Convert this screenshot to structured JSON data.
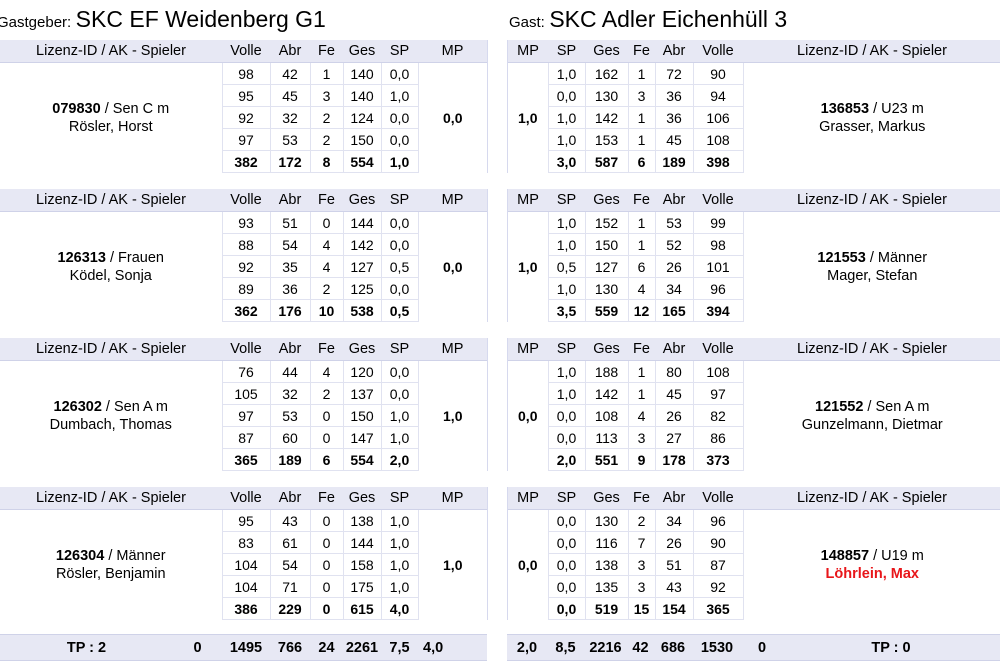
{
  "host": {
    "label": "Gastgeber:",
    "name": "SKC EF Weidenberg G1"
  },
  "guest": {
    "label": "Gast:",
    "name": "SKC Adler Eichenhüll 3"
  },
  "headers": {
    "player": "Lizenz-ID / AK - Spieler",
    "volle": "Volle",
    "abr": "Abr",
    "fe": "Fe",
    "ges": "Ges",
    "sp": "SP",
    "mp": "MP"
  },
  "matches": [
    {
      "host": {
        "id": "079830",
        "ak": " / Sen C m",
        "name": "Rösler, Horst",
        "mp": "0,0",
        "rows": [
          [
            "98",
            "42",
            "1",
            "140",
            "0,0"
          ],
          [
            "95",
            "45",
            "3",
            "140",
            "1,0"
          ],
          [
            "92",
            "32",
            "2",
            "124",
            "0,0"
          ],
          [
            "97",
            "53",
            "2",
            "150",
            "0,0"
          ]
        ],
        "sum": [
          "382",
          "172",
          "8",
          "554",
          "1,0"
        ]
      },
      "guest": {
        "id": "136853",
        "ak": " / U23 m",
        "name": "Grasser, Markus",
        "mp": "1,0",
        "rows": [
          [
            "1,0",
            "162",
            "1",
            "72",
            "90"
          ],
          [
            "0,0",
            "130",
            "3",
            "36",
            "94"
          ],
          [
            "1,0",
            "142",
            "1",
            "36",
            "106"
          ],
          [
            "1,0",
            "153",
            "1",
            "45",
            "108"
          ]
        ],
        "sum": [
          "3,0",
          "587",
          "6",
          "189",
          "398"
        ]
      }
    },
    {
      "host": {
        "id": "126313",
        "ak": " / Frauen",
        "name": "Ködel, Sonja",
        "mp": "0,0",
        "rows": [
          [
            "93",
            "51",
            "0",
            "144",
            "0,0"
          ],
          [
            "88",
            "54",
            "4",
            "142",
            "0,0"
          ],
          [
            "92",
            "35",
            "4",
            "127",
            "0,5"
          ],
          [
            "89",
            "36",
            "2",
            "125",
            "0,0"
          ]
        ],
        "sum": [
          "362",
          "176",
          "10",
          "538",
          "0,5"
        ]
      },
      "guest": {
        "id": "121553",
        "ak": " / Männer",
        "name": "Mager, Stefan",
        "mp": "1,0",
        "rows": [
          [
            "1,0",
            "152",
            "1",
            "53",
            "99"
          ],
          [
            "1,0",
            "150",
            "1",
            "52",
            "98"
          ],
          [
            "0,5",
            "127",
            "6",
            "26",
            "101"
          ],
          [
            "1,0",
            "130",
            "4",
            "34",
            "96"
          ]
        ],
        "sum": [
          "3,5",
          "559",
          "12",
          "165",
          "394"
        ]
      }
    },
    {
      "host": {
        "id": "126302",
        "ak": " / Sen A m",
        "name": "Dumbach, Thomas",
        "mp": "1,0",
        "rows": [
          [
            "76",
            "44",
            "4",
            "120",
            "0,0"
          ],
          [
            "105",
            "32",
            "2",
            "137",
            "0,0"
          ],
          [
            "97",
            "53",
            "0",
            "150",
            "1,0"
          ],
          [
            "87",
            "60",
            "0",
            "147",
            "1,0"
          ]
        ],
        "sum": [
          "365",
          "189",
          "6",
          "554",
          "2,0"
        ]
      },
      "guest": {
        "id": "121552",
        "ak": " / Sen A m",
        "name": "Gunzelmann, Dietmar",
        "mp": "0,0",
        "rows": [
          [
            "1,0",
            "188",
            "1",
            "80",
            "108"
          ],
          [
            "1,0",
            "142",
            "1",
            "45",
            "97"
          ],
          [
            "0,0",
            "108",
            "4",
            "26",
            "82"
          ],
          [
            "0,0",
            "113",
            "3",
            "27",
            "86"
          ]
        ],
        "sum": [
          "2,0",
          "551",
          "9",
          "178",
          "373"
        ]
      }
    },
    {
      "host": {
        "id": "126304",
        "ak": " / Männer",
        "name": "Rösler, Benjamin",
        "mp": "1,0",
        "rows": [
          [
            "95",
            "43",
            "0",
            "138",
            "1,0"
          ],
          [
            "83",
            "61",
            "0",
            "144",
            "1,0"
          ],
          [
            "104",
            "54",
            "0",
            "158",
            "1,0"
          ],
          [
            "104",
            "71",
            "0",
            "175",
            "1,0"
          ]
        ],
        "sum": [
          "386",
          "229",
          "0",
          "615",
          "4,0"
        ]
      },
      "guest": {
        "id": "148857",
        "ak": " / U19 m",
        "name": "Löhrlein, Max",
        "name_color": "#e8161a",
        "mp": "0,0",
        "rows": [
          [
            "0,0",
            "130",
            "2",
            "34",
            "96"
          ],
          [
            "0,0",
            "116",
            "7",
            "26",
            "90"
          ],
          [
            "0,0",
            "138",
            "3",
            "51",
            "87"
          ],
          [
            "0,0",
            "135",
            "3",
            "43",
            "92"
          ]
        ],
        "sum": [
          "0,0",
          "519",
          "15",
          "154",
          "365"
        ]
      }
    }
  ],
  "totals": {
    "host": {
      "tp": "TP : 2",
      "mp": "0",
      "volle": "1495",
      "abr": "766",
      "fe": "24",
      "ges": "2261",
      "sp": "7,5",
      "mp_sum": "4,0"
    },
    "guest": {
      "mp_sum": "2,0",
      "sp": "8,5",
      "ges": "2216",
      "fe": "42",
      "abr": "686",
      "volle": "1530",
      "mp": "0",
      "tp": "TP : 0"
    }
  }
}
